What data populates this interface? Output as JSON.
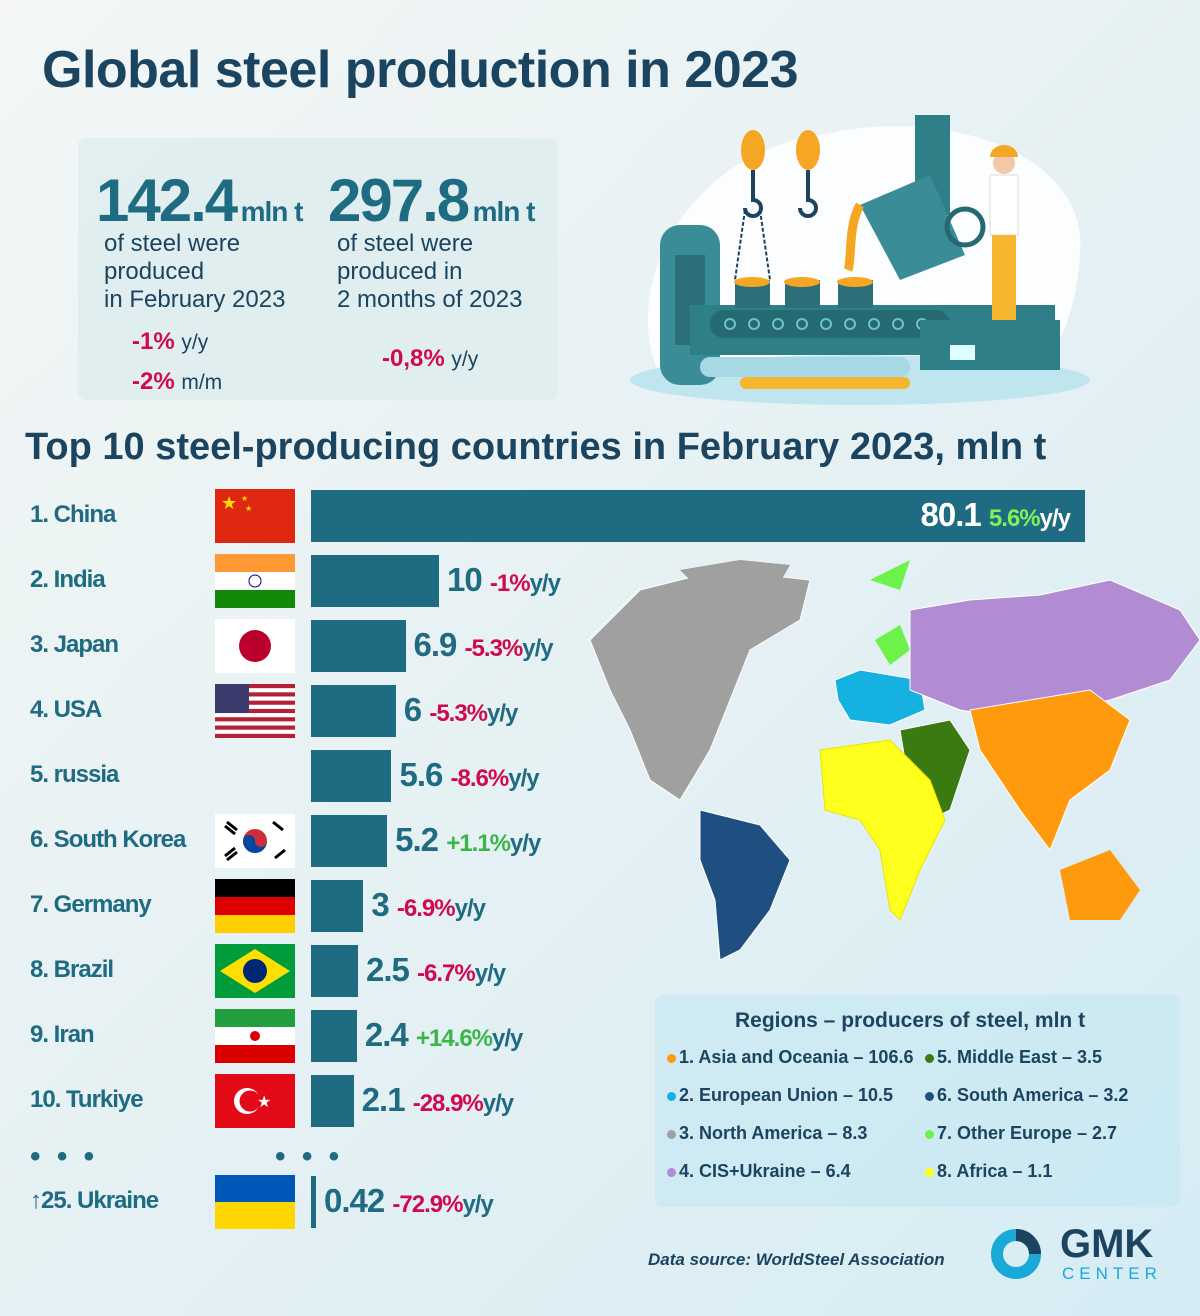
{
  "title": "Global steel production in 2023",
  "stats": [
    {
      "value": "142.4",
      "unit": "mln t",
      "desc": [
        "of steel were",
        "produced",
        "in February 2023"
      ],
      "changes": [
        {
          "pct": "-1%",
          "unit": "y/y"
        },
        {
          "pct": "-2%",
          "unit": "m/m"
        }
      ]
    },
    {
      "value": "297.8",
      "unit": "mln t",
      "desc": [
        "of steel were",
        "produced in",
        "2 months of 2023"
      ],
      "changes": [
        {
          "pct": "-0,8%",
          "unit": "y/y"
        }
      ]
    }
  ],
  "chart_data": {
    "type": "bar",
    "title": "Top 10 steel-producing countries in February 2023, mln t",
    "categories": [
      "1. China",
      "2. India",
      "3. Japan",
      "4. USA",
      "5. russia",
      "6. South Korea",
      "7. Germany",
      "8. Brazil",
      "9. Iran",
      "10. Turkiye",
      "↑25. Ukraine"
    ],
    "values": [
      80.1,
      10,
      6.9,
      6,
      5.6,
      5.2,
      3,
      2.5,
      2.4,
      2.1,
      0.42
    ],
    "value_labels": [
      "80.1",
      "10",
      "6.9",
      "6",
      "5.6",
      "5.2",
      "3",
      "2.5",
      "2.4",
      "2.1",
      "0.42"
    ],
    "changes": [
      "5.6%",
      "-1%",
      "-5.3%",
      "-5.3%",
      "-8.6%",
      "+1.1%",
      "-6.9%",
      "-6.7%",
      "+14.6%",
      "-28.9%",
      "-72.9%"
    ],
    "change_unit": "y/y",
    "bar_color": "#1f6b82",
    "negative_color": "#d1094f",
    "positive_color": "#39b54a"
  },
  "ellipsis": "• • •",
  "legend": {
    "title": "Regions  – producers of steel, mln t",
    "items": [
      {
        "label": "1. Asia and Oceania – 106.6",
        "color": "#ff9a0e"
      },
      {
        "label": "2. European Union – 10.5",
        "color": "#15b1e0"
      },
      {
        "label": "3. North America – 8.3",
        "color": "#a0a0a0"
      },
      {
        "label": "4. CIS+Ukraine – 6.4",
        "color": "#b18cd2"
      },
      {
        "label": "5. Middle East – 3.5",
        "color": "#3a7a10"
      },
      {
        "label": "6. South America – 3.2",
        "color": "#1f4f80"
      },
      {
        "label": "7. Other Europe – 2.7",
        "color": "#6cf24a"
      },
      {
        "label": "8. Africa – 1.1",
        "color": "#ffff1e"
      }
    ]
  },
  "source": "Data source: WorldSteel Association",
  "logo": {
    "name": "GMK",
    "sub": "CENTER"
  }
}
